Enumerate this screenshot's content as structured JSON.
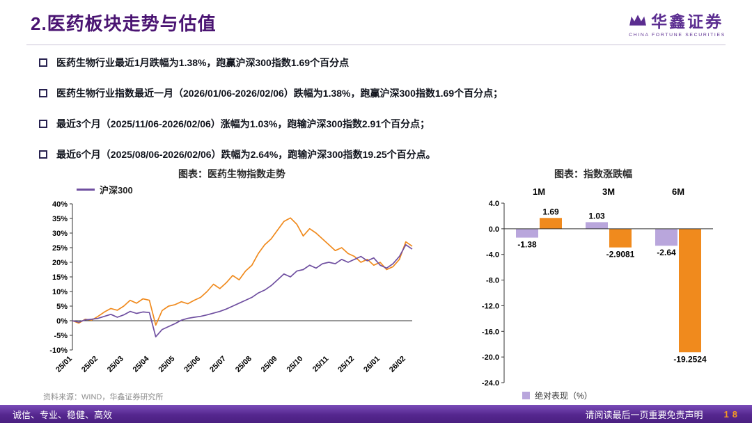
{
  "header": {
    "title": "2.医药板块走势与估值"
  },
  "logo": {
    "name": "华鑫证券",
    "subtitle": "CHINA FORTUNE SECURITIES"
  },
  "theme": {
    "title_purple": "#4a1472",
    "brand_purple": "#5b2d90",
    "accent_orange": "#F08A1D",
    "line_purple": "#6F4FA0",
    "bar_light_purple": "#B9A6DC",
    "footer_purple": "#55278f",
    "page_number_orange": "#f59a23"
  },
  "bullets": [
    "医药生物行业最近1月跌幅为1.38%，跑赢沪深300指数1.69个百分点",
    "医药生物行业指数最近一月（2026/01/06-2026/02/06）跌幅为1.38%，跑赢沪深300指数1.69个百分点；",
    "最近3个月（2025/11/06-2026/02/06）涨幅为1.03%，跑输沪深300指数2.91个百分点；",
    "最近6个月（2025/08/06-2026/02/06）跌幅为2.64%，跑输沪深300指数19.25个百分点。"
  ],
  "chart_data": [
    {
      "type": "line",
      "title": "图表：医药生物指数走势",
      "legend_label": "沪深300",
      "ylim": [
        -10,
        40
      ],
      "ytick_step": 5,
      "ytick_format": "percent",
      "x_labels": [
        "25/01",
        "25/02",
        "25/03",
        "25/04",
        "25/05",
        "25/06",
        "25/07",
        "25/08",
        "25/09",
        "25/10",
        "25/11",
        "25/12",
        "26/01",
        "26/02"
      ],
      "points_per_month": 4,
      "series": [
        {
          "name": "医药生物",
          "color": "#F08A1D",
          "values": [
            0,
            -0.8,
            0.5,
            0.2,
            1.5,
            3,
            4.2,
            3.6,
            5,
            7,
            6,
            7.5,
            7,
            -1.5,
            3.5,
            5,
            5.5,
            6.5,
            5.8,
            7,
            8,
            10,
            12.5,
            11,
            13,
            15.5,
            14,
            17,
            19,
            23,
            26,
            28,
            31,
            34,
            35.2,
            33,
            29,
            31.5,
            30,
            28,
            26,
            24,
            25,
            23,
            22,
            20,
            21,
            19,
            20,
            17.5,
            18.5,
            21,
            27,
            25.5
          ]
        },
        {
          "name": "沪深300",
          "color": "#6F4FA0",
          "values": [
            0,
            -0.5,
            0.3,
            0.5,
            0.8,
            1.5,
            2.2,
            1.2,
            2,
            3.2,
            2.5,
            3,
            2.8,
            -5.5,
            -3,
            -2,
            -1,
            0.2,
            0.8,
            1.2,
            1.5,
            2,
            2.6,
            3.2,
            4,
            5,
            6,
            7,
            8,
            9.5,
            10.5,
            12,
            14,
            16,
            15,
            17,
            17.5,
            19,
            18,
            19.5,
            20,
            19.5,
            21,
            20,
            21,
            22,
            20.5,
            21.5,
            19,
            18,
            19.5,
            22,
            26,
            24.5
          ]
        }
      ]
    },
    {
      "type": "bar",
      "title": "图表：指数涨跌幅",
      "legend_label": "绝对表现（%）",
      "categories": [
        "1M",
        "3M",
        "6M"
      ],
      "ylim": [
        -24,
        4
      ],
      "ytick_step": 4,
      "series": [
        {
          "name": "绝对表现（%）",
          "color": "#B9A6DC",
          "values": [
            -1.38,
            1.03,
            -2.64
          ],
          "value_labels": [
            "-1.38",
            "1.03",
            "-2.64"
          ]
        },
        {
          "name": "",
          "color": "#F08A1D",
          "values": [
            1.69,
            -2.9081,
            -19.2524
          ],
          "value_labels": [
            "1.69",
            "-2.9081",
            "-19.2524"
          ]
        }
      ]
    }
  ],
  "source": "资料来源：WIND，华鑫证券研究所",
  "footer": {
    "left": "诚信、专业、稳健、高效",
    "disclaimer": "请阅读最后一页重要免责声明",
    "page": "18"
  }
}
